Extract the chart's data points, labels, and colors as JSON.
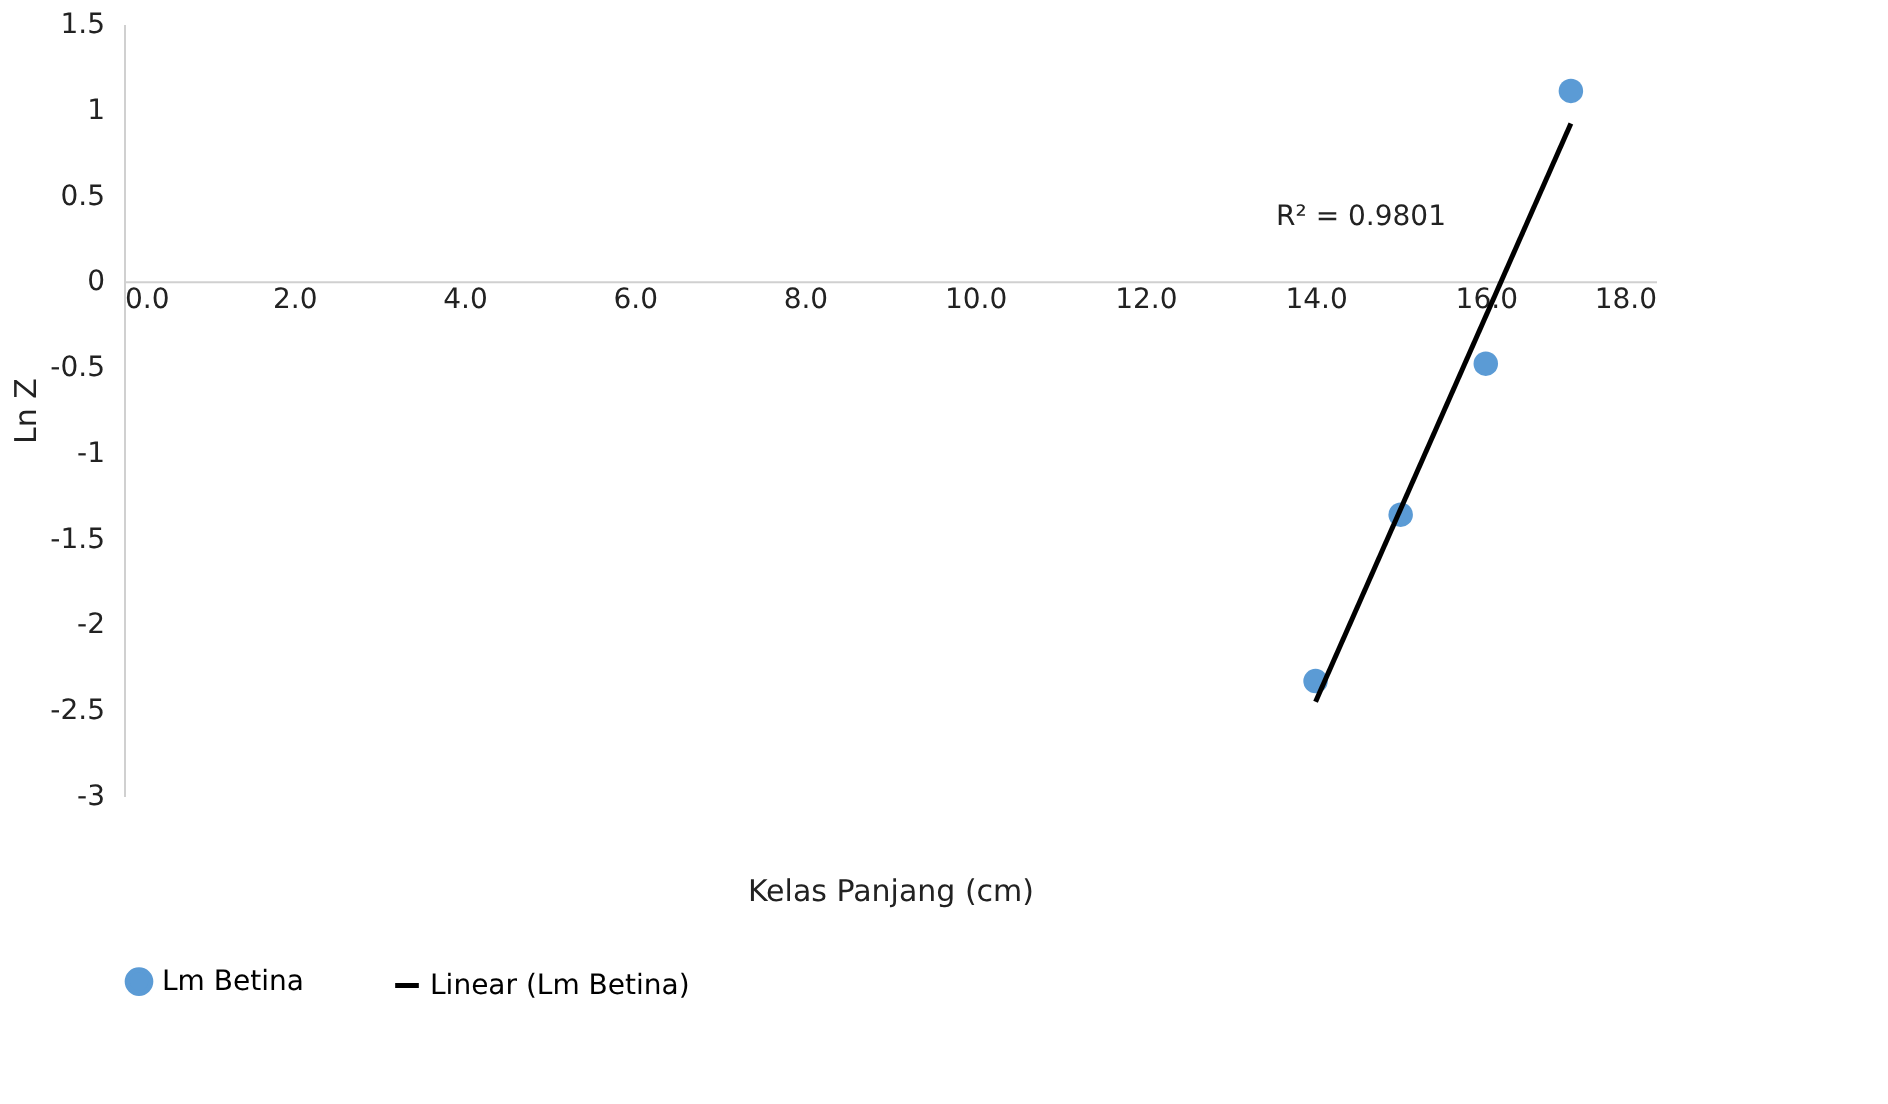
{
  "chart_data": {
    "type": "scatter",
    "xlabel": "Kelas Panjang (cm)",
    "ylabel": "Ln Z",
    "xlim": [
      0,
      18
    ],
    "xticks": [
      {
        "value": 0,
        "label": "0.0"
      },
      {
        "value": 2,
        "label": "2.0"
      },
      {
        "value": 4,
        "label": "4.0"
      },
      {
        "value": 6,
        "label": "6.0"
      },
      {
        "value": 8,
        "label": "8.0"
      },
      {
        "value": 10,
        "label": "10.0"
      },
      {
        "value": 12,
        "label": "12.0"
      },
      {
        "value": 14,
        "label": "14.0"
      },
      {
        "value": 16,
        "label": "16.0"
      },
      {
        "value": 18,
        "label": "18.0"
      }
    ],
    "ylim": [
      -3,
      1.5
    ],
    "yticks": [
      -3,
      -2.5,
      -2,
      -1.5,
      -1,
      -0.5,
      0,
      0.5,
      1,
      1.5
    ],
    "legend": "bottom",
    "series": [
      {
        "name": "Lm Betina",
        "marker": "circle",
        "color": "#5b9bd5",
        "x": [
          14,
          15,
          16,
          17
        ],
        "values": [
          -2.33,
          -1.36,
          -0.48,
          1.11
        ]
      },
      {
        "name": "Linear (Lm Betina)",
        "type": "line",
        "marker": "none",
        "line_style": "solid",
        "color": "#000000",
        "x": [
          14,
          17
        ],
        "values": [
          -2.45,
          0.92
        ]
      }
    ],
    "annotations": [
      "R² = 0.9801"
    ]
  }
}
